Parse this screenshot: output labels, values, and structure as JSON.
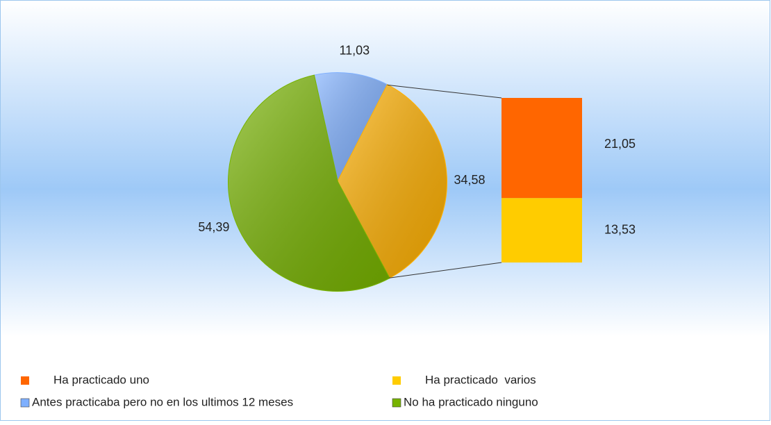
{
  "chart_data": {
    "type": "pie-of-bar",
    "categories": [
      "Antes practicaba pero no en los ultimos 12 meses",
      null,
      "No ha practicado ninguno"
    ],
    "values": [
      11.03,
      34.58,
      54.39
    ],
    "value_labels": [
      "11,03",
      "34,58",
      "54,39"
    ],
    "colors": [
      "#7fb0ff",
      "#ffb000",
      "#77b300"
    ],
    "breakdown": {
      "categories": [
        "Ha practicado uno",
        "Ha practicado  varios"
      ],
      "values": [
        21.05,
        13.53
      ],
      "value_labels": [
        "21,05",
        "13,53"
      ],
      "colors": [
        "#ff6600",
        "#ffcc00"
      ]
    }
  }
}
